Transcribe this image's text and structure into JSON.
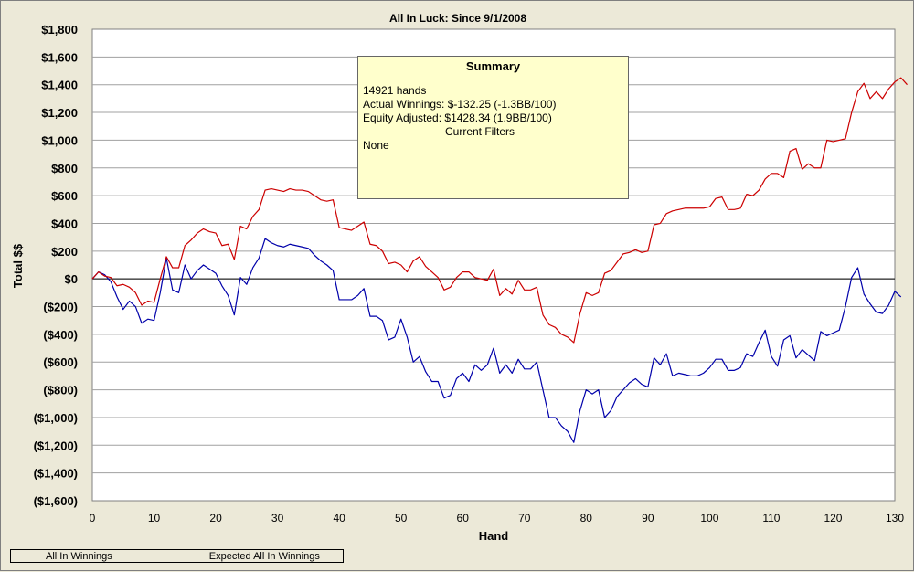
{
  "chart_data": {
    "type": "line",
    "title": "All In Luck:  Since 9/1/2008",
    "xlabel": "Hand",
    "ylabel": "Total $$",
    "xlim": [
      0,
      130
    ],
    "ylim": [
      -1600,
      1800
    ],
    "x_ticks": [
      "0",
      "10",
      "20",
      "30",
      "40",
      "50",
      "60",
      "70",
      "80",
      "90",
      "100",
      "110",
      "120",
      "130"
    ],
    "y_ticks": [
      "$1,800",
      "$1,600",
      "$1,400",
      "$1,200",
      "$1,000",
      "$800",
      "$600",
      "$400",
      "$200",
      "$0",
      "($200)",
      "($400)",
      "($600)",
      "($800)",
      "($1,000)",
      "($1,200)",
      "($1,400)",
      "($1,600)"
    ],
    "grid": true,
    "legend": "bottom-left",
    "series": [
      {
        "name": "All In Winnings",
        "color": "#0000aa",
        "values": [
          0,
          50,
          30,
          -20,
          -130,
          -220,
          -160,
          -200,
          -320,
          -290,
          -300,
          -100,
          150,
          -80,
          -100,
          100,
          0,
          60,
          100,
          70,
          40,
          -50,
          -120,
          -260,
          10,
          -40,
          80,
          150,
          290,
          260,
          240,
          230,
          250,
          240,
          230,
          220,
          170,
          130,
          100,
          60,
          -150,
          -150,
          -150,
          -120,
          -70,
          -270,
          -270,
          -300,
          -440,
          -420,
          -290,
          -420,
          -600,
          -560,
          -670,
          -740,
          -740,
          -860,
          -840,
          -720,
          -680,
          -740,
          -620,
          -660,
          -620,
          -500,
          -680,
          -620,
          -680,
          -580,
          -650,
          -650,
          -600,
          -800,
          -1000,
          -1000,
          -1060,
          -1100,
          -1180,
          -950,
          -800,
          -830,
          -800,
          -1000,
          -950,
          -850,
          -800,
          -750,
          -720,
          -760,
          -780,
          -570,
          -620,
          -540,
          -700,
          -680,
          -690,
          -700,
          -700,
          -680,
          -640,
          -580,
          -580,
          -660,
          -660,
          -640,
          -540,
          -560,
          -460,
          -370,
          -560,
          -630,
          -440,
          -410,
          -570,
          -510,
          -550,
          -590,
          -380,
          -410,
          -390,
          -370,
          -200,
          10,
          80,
          -110,
          -180,
          -240,
          -250,
          -190,
          -90,
          -130
        ]
      },
      {
        "name": "Expected All In Winnings",
        "color": "#cc0000",
        "values": [
          0,
          50,
          20,
          10,
          -50,
          -40,
          -60,
          -100,
          -190,
          -160,
          -170,
          0,
          160,
          80,
          80,
          240,
          280,
          330,
          360,
          340,
          330,
          240,
          250,
          140,
          380,
          360,
          450,
          500,
          640,
          650,
          640,
          630,
          650,
          640,
          640,
          630,
          600,
          570,
          560,
          570,
          370,
          360,
          350,
          380,
          410,
          250,
          240,
          200,
          110,
          120,
          100,
          50,
          130,
          160,
          90,
          50,
          10,
          -80,
          -60,
          10,
          50,
          50,
          10,
          0,
          -10,
          70,
          -120,
          -70,
          -110,
          -10,
          -80,
          -80,
          -60,
          -260,
          -330,
          -350,
          -400,
          -420,
          -460,
          -250,
          -100,
          -120,
          -100,
          40,
          60,
          120,
          180,
          190,
          210,
          190,
          200,
          390,
          400,
          470,
          490,
          500,
          510,
          510,
          510,
          510,
          520,
          580,
          590,
          500,
          500,
          510,
          610,
          600,
          640,
          720,
          760,
          760,
          730,
          920,
          940,
          790,
          830,
          800,
          800,
          1000,
          990,
          1000,
          1010,
          1200,
          1350,
          1410,
          1300,
          1350,
          1300,
          1370,
          1420,
          1450,
          1400
        ]
      }
    ]
  },
  "summary": {
    "title": "Summary",
    "hands": "14921 hands",
    "actual": "Actual Winnings: $-132.25 (-1.3BB/100)",
    "equity": "Equity Adjusted: $1428.34 (1.9BB/100)",
    "filters_label": "Current Filters",
    "filters_value": "None"
  }
}
